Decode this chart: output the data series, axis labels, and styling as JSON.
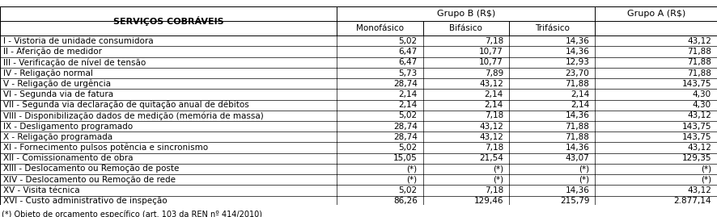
{
  "title": "SERVIÇOS COBRÁVEIS",
  "col_headers_top": [
    "",
    "Grupo B (R$)",
    "",
    "",
    "Grupo A (R$)"
  ],
  "col_headers_sub": [
    "SERVIÇOS COBRÁVEIS",
    "Monofásico",
    "Bifásico",
    "Trifásico",
    "Grupo A (R$)"
  ],
  "rows": [
    [
      "I - Vistoria de unidade consumidora",
      "5,02",
      "7,18",
      "14,36",
      "43,12"
    ],
    [
      "II - Aferição de medidor",
      "6,47",
      "10,77",
      "14,36",
      "71,88"
    ],
    [
      "III - Verificação de nível de tensão",
      "6,47",
      "10,77",
      "12,93",
      "71,88"
    ],
    [
      "IV - Religação normal",
      "5,73",
      "7,89",
      "23,70",
      "71,88"
    ],
    [
      "V - Religação de urgência",
      "28,74",
      "43,12",
      "71,88",
      "143,75"
    ],
    [
      "VI - Segunda via de fatura",
      "2,14",
      "2,14",
      "2,14",
      "4,30"
    ],
    [
      "VII - Segunda via declaração de quitação anual de débitos",
      "2,14",
      "2,14",
      "2,14",
      "4,30"
    ],
    [
      "VIII - Disponibilização dados de medição (memória de massa)",
      "5,02",
      "7,18",
      "14,36",
      "43,12"
    ],
    [
      "IX - Desligamento programado",
      "28,74",
      "43,12",
      "71,88",
      "143,75"
    ],
    [
      "X - Religação programada",
      "28,74",
      "43,12",
      "71,88",
      "143,75"
    ],
    [
      "XI - Fornecimento pulsos potência e sincronismo",
      "5,02",
      "7,18",
      "14,36",
      "43,12"
    ],
    [
      "XII - Comissionamento de obra",
      "15,05",
      "21,54",
      "43,07",
      "129,35"
    ],
    [
      "XIII - Deslocamento ou Remoção de poste",
      "(*)",
      "(*)",
      "(*)",
      "(*)"
    ],
    [
      "XIV - Deslocamento ou Remoção de rede",
      "(*)",
      "(*)",
      "(*)",
      "(*)"
    ],
    [
      "XV - Visita técnica",
      "5,02",
      "7,18",
      "14,36",
      "43,12"
    ],
    [
      "XVI - Custo administrativo de inspeção",
      "86,26",
      "129,46",
      "215,79",
      "2.877,14"
    ]
  ],
  "footnote": "(*) Objeto de orçamento específico (art. 103 da REN nº 414/2010)",
  "footnote_link": "414/2010",
  "bg_color": "#ffffff",
  "header_bg": "#ffffff",
  "line_color": "#000000",
  "text_color": "#000000",
  "font_size": 7.5,
  "header_font_size": 8.0
}
